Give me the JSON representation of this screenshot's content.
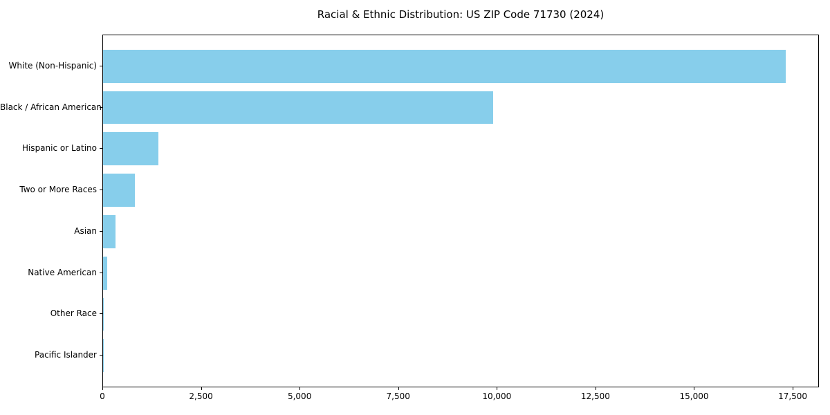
{
  "chart_data": {
    "type": "bar",
    "orientation": "horizontal",
    "title": "Racial & Ethnic Distribution: US ZIP Code 71730 (2024)",
    "categories": [
      "White (Non-Hispanic)",
      "Black / African American",
      "Hispanic or Latino",
      "Two or More Races",
      "Asian",
      "Native American",
      "Other Race",
      "Pacific Islander"
    ],
    "values": [
      17300,
      9890,
      1400,
      810,
      320,
      110,
      10,
      3
    ],
    "xlabel": "",
    "ylabel": "",
    "xlim": [
      0,
      18130
    ],
    "x_ticks": [
      0,
      2500,
      5000,
      7500,
      10000,
      12500,
      15000,
      17500
    ],
    "x_tick_labels": [
      "0",
      "2,500",
      "5,000",
      "7,500",
      "10,000",
      "12,500",
      "15,000",
      "17,500"
    ],
    "grid": false,
    "legend": null,
    "colors": {
      "bar": "#87CEEB",
      "spine": "#000000",
      "text": "#000000",
      "background": "#ffffff"
    }
  }
}
